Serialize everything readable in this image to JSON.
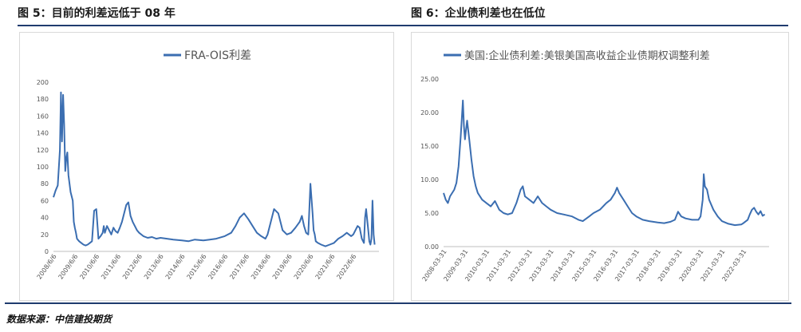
{
  "figures": {
    "left_title": "图 5：目前的利差远低于 08 年",
    "right_title": "图 6：企业债利差也在低位"
  },
  "source": "数据来源：中信建投期货",
  "chart_data": [
    {
      "type": "line",
      "legend": "FRA-OIS利差",
      "color": "#3b6eb1",
      "ylim": [
        0,
        200
      ],
      "yticks": [
        "0",
        "20",
        "40",
        "60",
        "80",
        "100",
        "120",
        "140",
        "160",
        "180",
        "200"
      ],
      "xticks": [
        "2008/6/6",
        "2009/6/6",
        "2010/6/6",
        "2011/6/6",
        "2012/6/6",
        "2013/6/6",
        "2014/6/6",
        "2015/6/6",
        "2016/6/6",
        "2017/6/6",
        "2018/6/6",
        "2019/6/6",
        "2020/6/6",
        "2021/6/6",
        "2022/6/6"
      ],
      "xlim": [
        2008.0,
        2023.2
      ],
      "series": [
        {
          "x": [
            2008.0,
            2008.1,
            2008.2,
            2008.3,
            2008.35,
            2008.4,
            2008.45,
            2008.5,
            2008.55,
            2008.6,
            2008.65,
            2008.7,
            2008.8,
            2008.9,
            2008.95,
            2009.0,
            2009.05,
            2009.1,
            2009.2,
            2009.3,
            2009.4,
            2009.5,
            2009.6,
            2009.7,
            2009.8,
            2009.9,
            2010.0,
            2010.1,
            2010.2,
            2010.3,
            2010.35,
            2010.4,
            2010.45,
            2010.5,
            2010.6,
            2010.7,
            2010.8,
            2010.9,
            2011.0,
            2011.1,
            2011.2,
            2011.3,
            2011.4,
            2011.5,
            2011.6,
            2011.7,
            2011.8,
            2011.9,
            2012.0,
            2012.2,
            2012.4,
            2012.6,
            2012.8,
            2013.0,
            2013.3,
            2013.6,
            2014.0,
            2014.3,
            2014.6,
            2015.0,
            2015.3,
            2015.6,
            2016.0,
            2016.3,
            2016.5,
            2016.7,
            2016.9,
            2017.1,
            2017.3,
            2017.5,
            2017.7,
            2017.9,
            2018.0,
            2018.1,
            2018.3,
            2018.5,
            2018.7,
            2018.9,
            2019.1,
            2019.3,
            2019.5,
            2019.6,
            2019.7,
            2019.8,
            2019.9,
            2020.0,
            2020.1,
            2020.15,
            2020.2,
            2020.25,
            2020.35,
            2020.5,
            2020.7,
            2020.9,
            2021.1,
            2021.3,
            2021.5,
            2021.7,
            2021.9,
            2022.0,
            2022.1,
            2022.2,
            2022.3,
            2022.4,
            2022.5,
            2022.55,
            2022.6,
            2022.7,
            2022.75,
            2022.8,
            2022.85,
            2022.9,
            2022.95,
            2023.0
          ],
          "y": [
            64,
            72,
            78,
            120,
            188,
            130,
            185,
            150,
            95,
            110,
            117,
            90,
            70,
            60,
            35,
            28,
            22,
            15,
            12,
            10,
            8,
            7,
            8,
            10,
            12,
            48,
            50,
            15,
            18,
            22,
            30,
            22,
            26,
            30,
            25,
            20,
            28,
            24,
            22,
            28,
            35,
            45,
            55,
            58,
            42,
            35,
            30,
            25,
            22,
            18,
            16,
            17,
            15,
            16,
            15,
            14,
            13,
            12,
            14,
            13,
            14,
            15,
            18,
            22,
            30,
            40,
            45,
            38,
            30,
            22,
            18,
            15,
            20,
            30,
            50,
            45,
            25,
            20,
            22,
            28,
            35,
            42,
            30,
            22,
            20,
            80,
            45,
            25,
            20,
            12,
            10,
            8,
            6,
            8,
            10,
            15,
            18,
            22,
            18,
            20,
            25,
            30,
            28,
            15,
            10,
            40,
            50,
            25,
            12,
            8,
            15,
            60,
            20,
            8
          ]
        }
      ]
    },
    {
      "type": "line",
      "legend": "美国:企业债利差:美银美国高收益企业债期权调整利差",
      "color": "#3b6eb1",
      "ylim": [
        0,
        25
      ],
      "yticks": [
        "0.00",
        "5.00",
        "10.00",
        "15.00",
        "20.00",
        "25.00"
      ],
      "xticks": [
        "2008-03-31",
        "2009-03-31",
        "2010-03-31",
        "2011-03-31",
        "2012-03-31",
        "2013-03-31",
        "2014-03-31",
        "2015-03-31",
        "2016-03-31",
        "2017-03-31",
        "2018-03-31",
        "2019-03-31",
        "2020-03-31",
        "2021-03-31",
        "2022-03-31"
      ],
      "xlim": [
        2008.0,
        2023.2
      ],
      "series": [
        {
          "x": [
            2008.0,
            2008.1,
            2008.2,
            2008.3,
            2008.5,
            2008.6,
            2008.7,
            2008.8,
            2008.85,
            2008.9,
            2008.95,
            2009.0,
            2009.05,
            2009.1,
            2009.2,
            2009.3,
            2009.4,
            2009.5,
            2009.6,
            2009.8,
            2010.0,
            2010.2,
            2010.4,
            2010.6,
            2010.8,
            2011.0,
            2011.2,
            2011.4,
            2011.6,
            2011.7,
            2011.8,
            2012.0,
            2012.2,
            2012.4,
            2012.6,
            2012.8,
            2013.0,
            2013.3,
            2013.6,
            2014.0,
            2014.3,
            2014.5,
            2014.8,
            2015.0,
            2015.3,
            2015.6,
            2015.8,
            2016.0,
            2016.1,
            2016.2,
            2016.4,
            2016.6,
            2016.8,
            2017.0,
            2017.3,
            2017.6,
            2018.0,
            2018.3,
            2018.6,
            2018.8,
            2018.95,
            2019.1,
            2019.3,
            2019.6,
            2019.9,
            2020.0,
            2020.1,
            2020.15,
            2020.2,
            2020.3,
            2020.4,
            2020.6,
            2020.8,
            2021.0,
            2021.3,
            2021.6,
            2021.9,
            2022.0,
            2022.2,
            2022.3,
            2022.4,
            2022.5,
            2022.6,
            2022.7,
            2022.8,
            2022.9,
            2023.0
          ],
          "y": [
            8.0,
            7.0,
            6.5,
            7.5,
            8.5,
            9.5,
            12.0,
            16.5,
            19.0,
            21.8,
            18.0,
            16.0,
            17.5,
            18.8,
            16.0,
            13.0,
            10.5,
            9.0,
            8.0,
            7.0,
            6.5,
            6.0,
            6.8,
            5.5,
            5.0,
            4.8,
            5.0,
            6.5,
            8.5,
            9.0,
            7.5,
            7.0,
            6.5,
            7.5,
            6.5,
            6.0,
            5.5,
            5.0,
            4.8,
            4.5,
            4.0,
            3.8,
            4.5,
            5.0,
            5.5,
            6.5,
            7.0,
            8.0,
            8.8,
            8.0,
            7.0,
            6.0,
            5.0,
            4.5,
            4.0,
            3.8,
            3.6,
            3.5,
            3.7,
            4.0,
            5.2,
            4.5,
            4.2,
            4.0,
            4.0,
            4.5,
            7.0,
            10.8,
            9.0,
            8.5,
            7.0,
            5.5,
            4.5,
            3.8,
            3.4,
            3.2,
            3.3,
            3.5,
            4.0,
            4.8,
            5.5,
            5.8,
            5.2,
            4.8,
            5.3,
            4.6,
            4.8
          ]
        }
      ]
    }
  ]
}
